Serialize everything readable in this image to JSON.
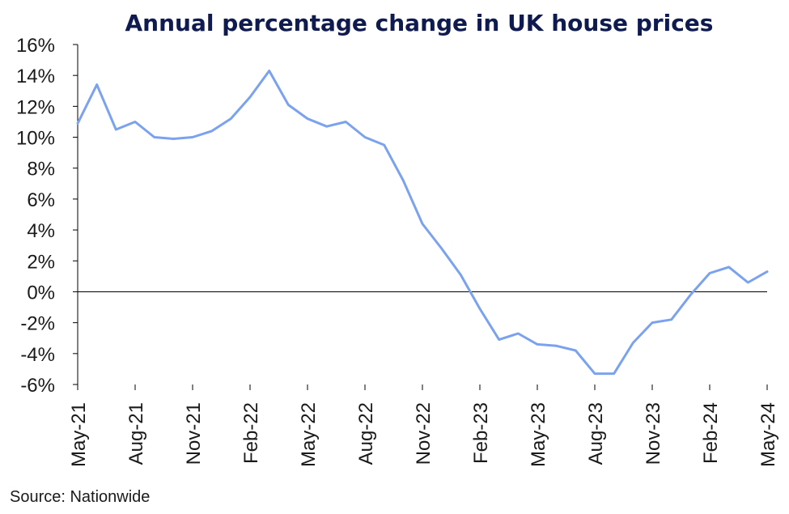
{
  "chart_data": {
    "type": "line",
    "title": "Annual percentage change in UK house prices",
    "source": "Source: Nationwide",
    "ylim": [
      -6,
      16
    ],
    "yticks": [
      "16%",
      "14%",
      "12%",
      "10%",
      "8%",
      "6%",
      "4%",
      "2%",
      "0%",
      "-2%",
      "-4%",
      "-6%"
    ],
    "ytick_values": [
      16,
      14,
      12,
      10,
      8,
      6,
      4,
      2,
      0,
      -2,
      -4,
      -6
    ],
    "xtick_labels": [
      "May-21",
      "Aug-21",
      "Nov-21",
      "Feb-22",
      "May-22",
      "Aug-22",
      "Nov-22",
      "Feb-23",
      "May-23",
      "Aug-23",
      "Nov-23",
      "Feb-24",
      "May-24"
    ],
    "line_color": "#7ba2ef",
    "series": [
      {
        "x": [
          "May-21",
          "Jun-21",
          "Jul-21",
          "Aug-21",
          "Sep-21",
          "Oct-21",
          "Nov-21",
          "Dec-21",
          "Jan-22",
          "Feb-22",
          "Mar-22",
          "Apr-22",
          "May-22",
          "Jun-22",
          "Jul-22",
          "Aug-22",
          "Sep-22",
          "Oct-22",
          "Nov-22",
          "Dec-22",
          "Jan-23",
          "Feb-23",
          "Mar-23",
          "Apr-23",
          "May-23",
          "Jun-23",
          "Jul-23",
          "Aug-23",
          "Sep-23",
          "Oct-23",
          "Nov-23",
          "Dec-23",
          "Jan-24",
          "Feb-24",
          "Mar-24",
          "Apr-24",
          "May-24"
        ],
        "values": [
          10.9,
          13.4,
          10.5,
          11.0,
          10.0,
          9.9,
          10.0,
          10.4,
          11.2,
          12.6,
          14.3,
          12.1,
          11.2,
          10.7,
          11.0,
          10.0,
          9.5,
          7.2,
          4.4,
          2.8,
          1.1,
          -1.1,
          -3.1,
          -2.7,
          -3.4,
          -3.5,
          -3.8,
          -5.3,
          -5.3,
          -3.3,
          -2.0,
          -1.8,
          -0.2,
          1.2,
          1.6,
          0.6,
          1.3
        ]
      }
    ]
  }
}
